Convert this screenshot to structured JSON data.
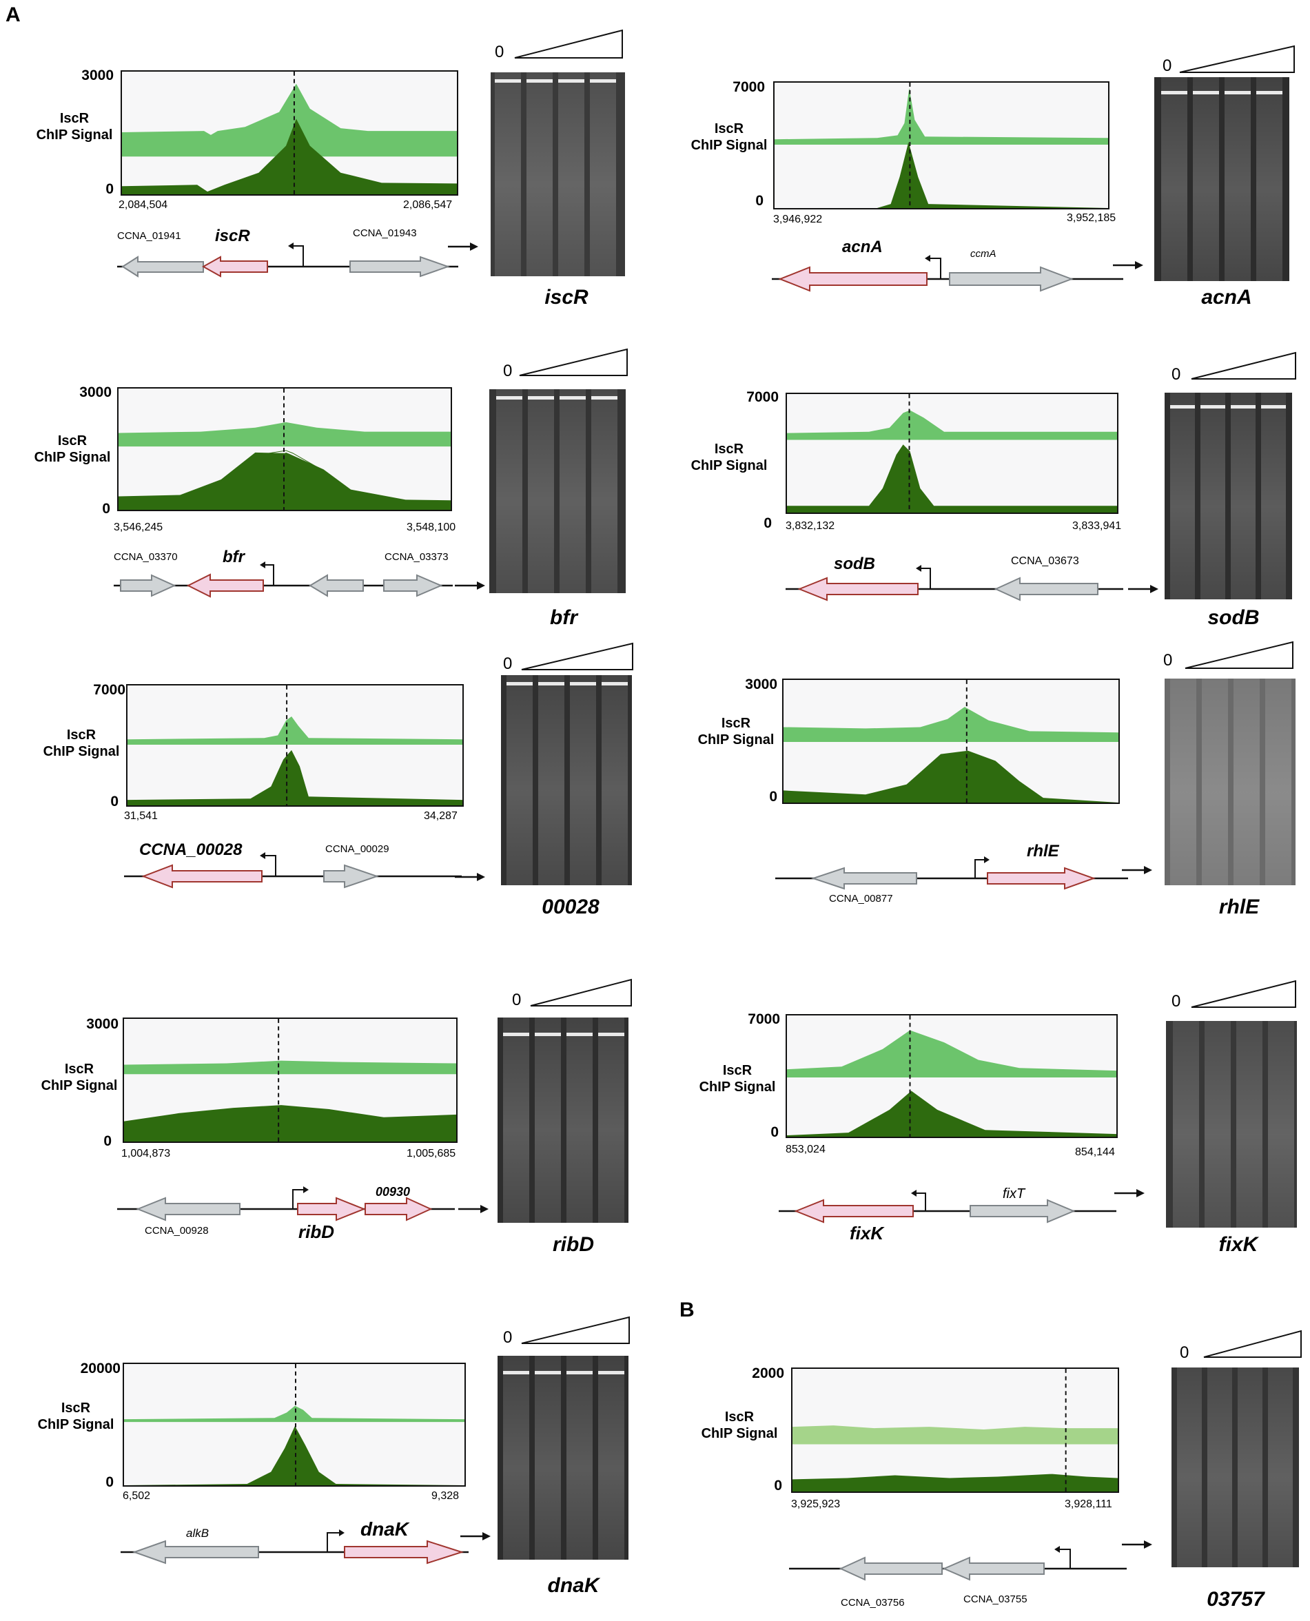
{
  "figure": {
    "panel_a": "A",
    "panel_b": "B",
    "y_label_line1": "IscR",
    "y_label_line2": "ChIP Signal",
    "gradient_zero": "0"
  },
  "panels": [
    {
      "id": "iscR",
      "ymax": "3000",
      "ymin": "0",
      "coord_left": "2,084,504",
      "coord_right": "2,086,547",
      "gel_label": "iscR",
      "gene_left": "CCNA_01941",
      "gene_target": "iscR",
      "gene_right": "CCNA_01943"
    },
    {
      "id": "acnA",
      "ymax": "7000",
      "ymin": "0",
      "coord_left": "3,946,922",
      "coord_right": "3,952,185",
      "gel_label": "acnA",
      "gene_target": "acnA",
      "gene_right": "ccmA"
    },
    {
      "id": "bfr",
      "ymax": "3000",
      "ymin": "0",
      "coord_left": "3,546,245",
      "coord_right": "3,548,100",
      "gel_label": "bfr",
      "gene_left": "CCNA_03370",
      "gene_target": "bfr",
      "gene_right": "CCNA_03373"
    },
    {
      "id": "sodB",
      "ymax": "7000",
      "ymin": "0",
      "coord_left": "3,832,132",
      "coord_right": "3,833,941",
      "gel_label": "sodB",
      "gene_target": "sodB",
      "gene_right": "CCNA_03673"
    },
    {
      "id": "00028",
      "ymax": "7000",
      "ymin": "0",
      "coord_left": "31,541",
      "coord_right": "34,287",
      "gel_label": "00028",
      "gene_target": "CCNA_00028",
      "gene_right": "CCNA_00029"
    },
    {
      "id": "rhlE",
      "ymax": "3000",
      "ymin": "0",
      "gel_label": "rhlE",
      "gene_left": "CCNA_00877",
      "gene_target": "rhlE"
    },
    {
      "id": "ribD",
      "ymax": "3000",
      "ymin": "0",
      "coord_left": "1,004,873",
      "coord_right": "1,005,685",
      "gel_label": "ribD",
      "gene_left": "CCNA_00928",
      "gene_target": "ribD",
      "gene_second": "00930"
    },
    {
      "id": "fixK",
      "ymax": "7000",
      "ymin": "0",
      "coord_left": "853,024",
      "coord_right": "854,144",
      "gel_label": "fixK",
      "gene_target": "fixK",
      "gene_right": "fixT"
    },
    {
      "id": "dnaK",
      "ymax": "20000",
      "ymin": "0",
      "coord_left": "6,502",
      "coord_right": "9,328",
      "gel_label": "dnaK",
      "gene_left": "alkB",
      "gene_target": "dnaK"
    },
    {
      "id": "03757",
      "ymax": "2000",
      "ymin": "0",
      "coord_left": "3,925,923",
      "coord_right": "3,928,111",
      "gel_label": "03757",
      "gene_left": "CCNA_03756",
      "gene_mid": "CCNA_03755"
    }
  ],
  "colors": {
    "light_track": "#6cc46c",
    "dark_track": "#2e6b0f",
    "target_gene_fill": "#f4d3e3",
    "target_gene_stroke": "#a0352e",
    "other_gene_fill": "#d0d4d6",
    "other_gene_stroke": "#7e8488",
    "gel_bg": "#3a3a3a"
  }
}
